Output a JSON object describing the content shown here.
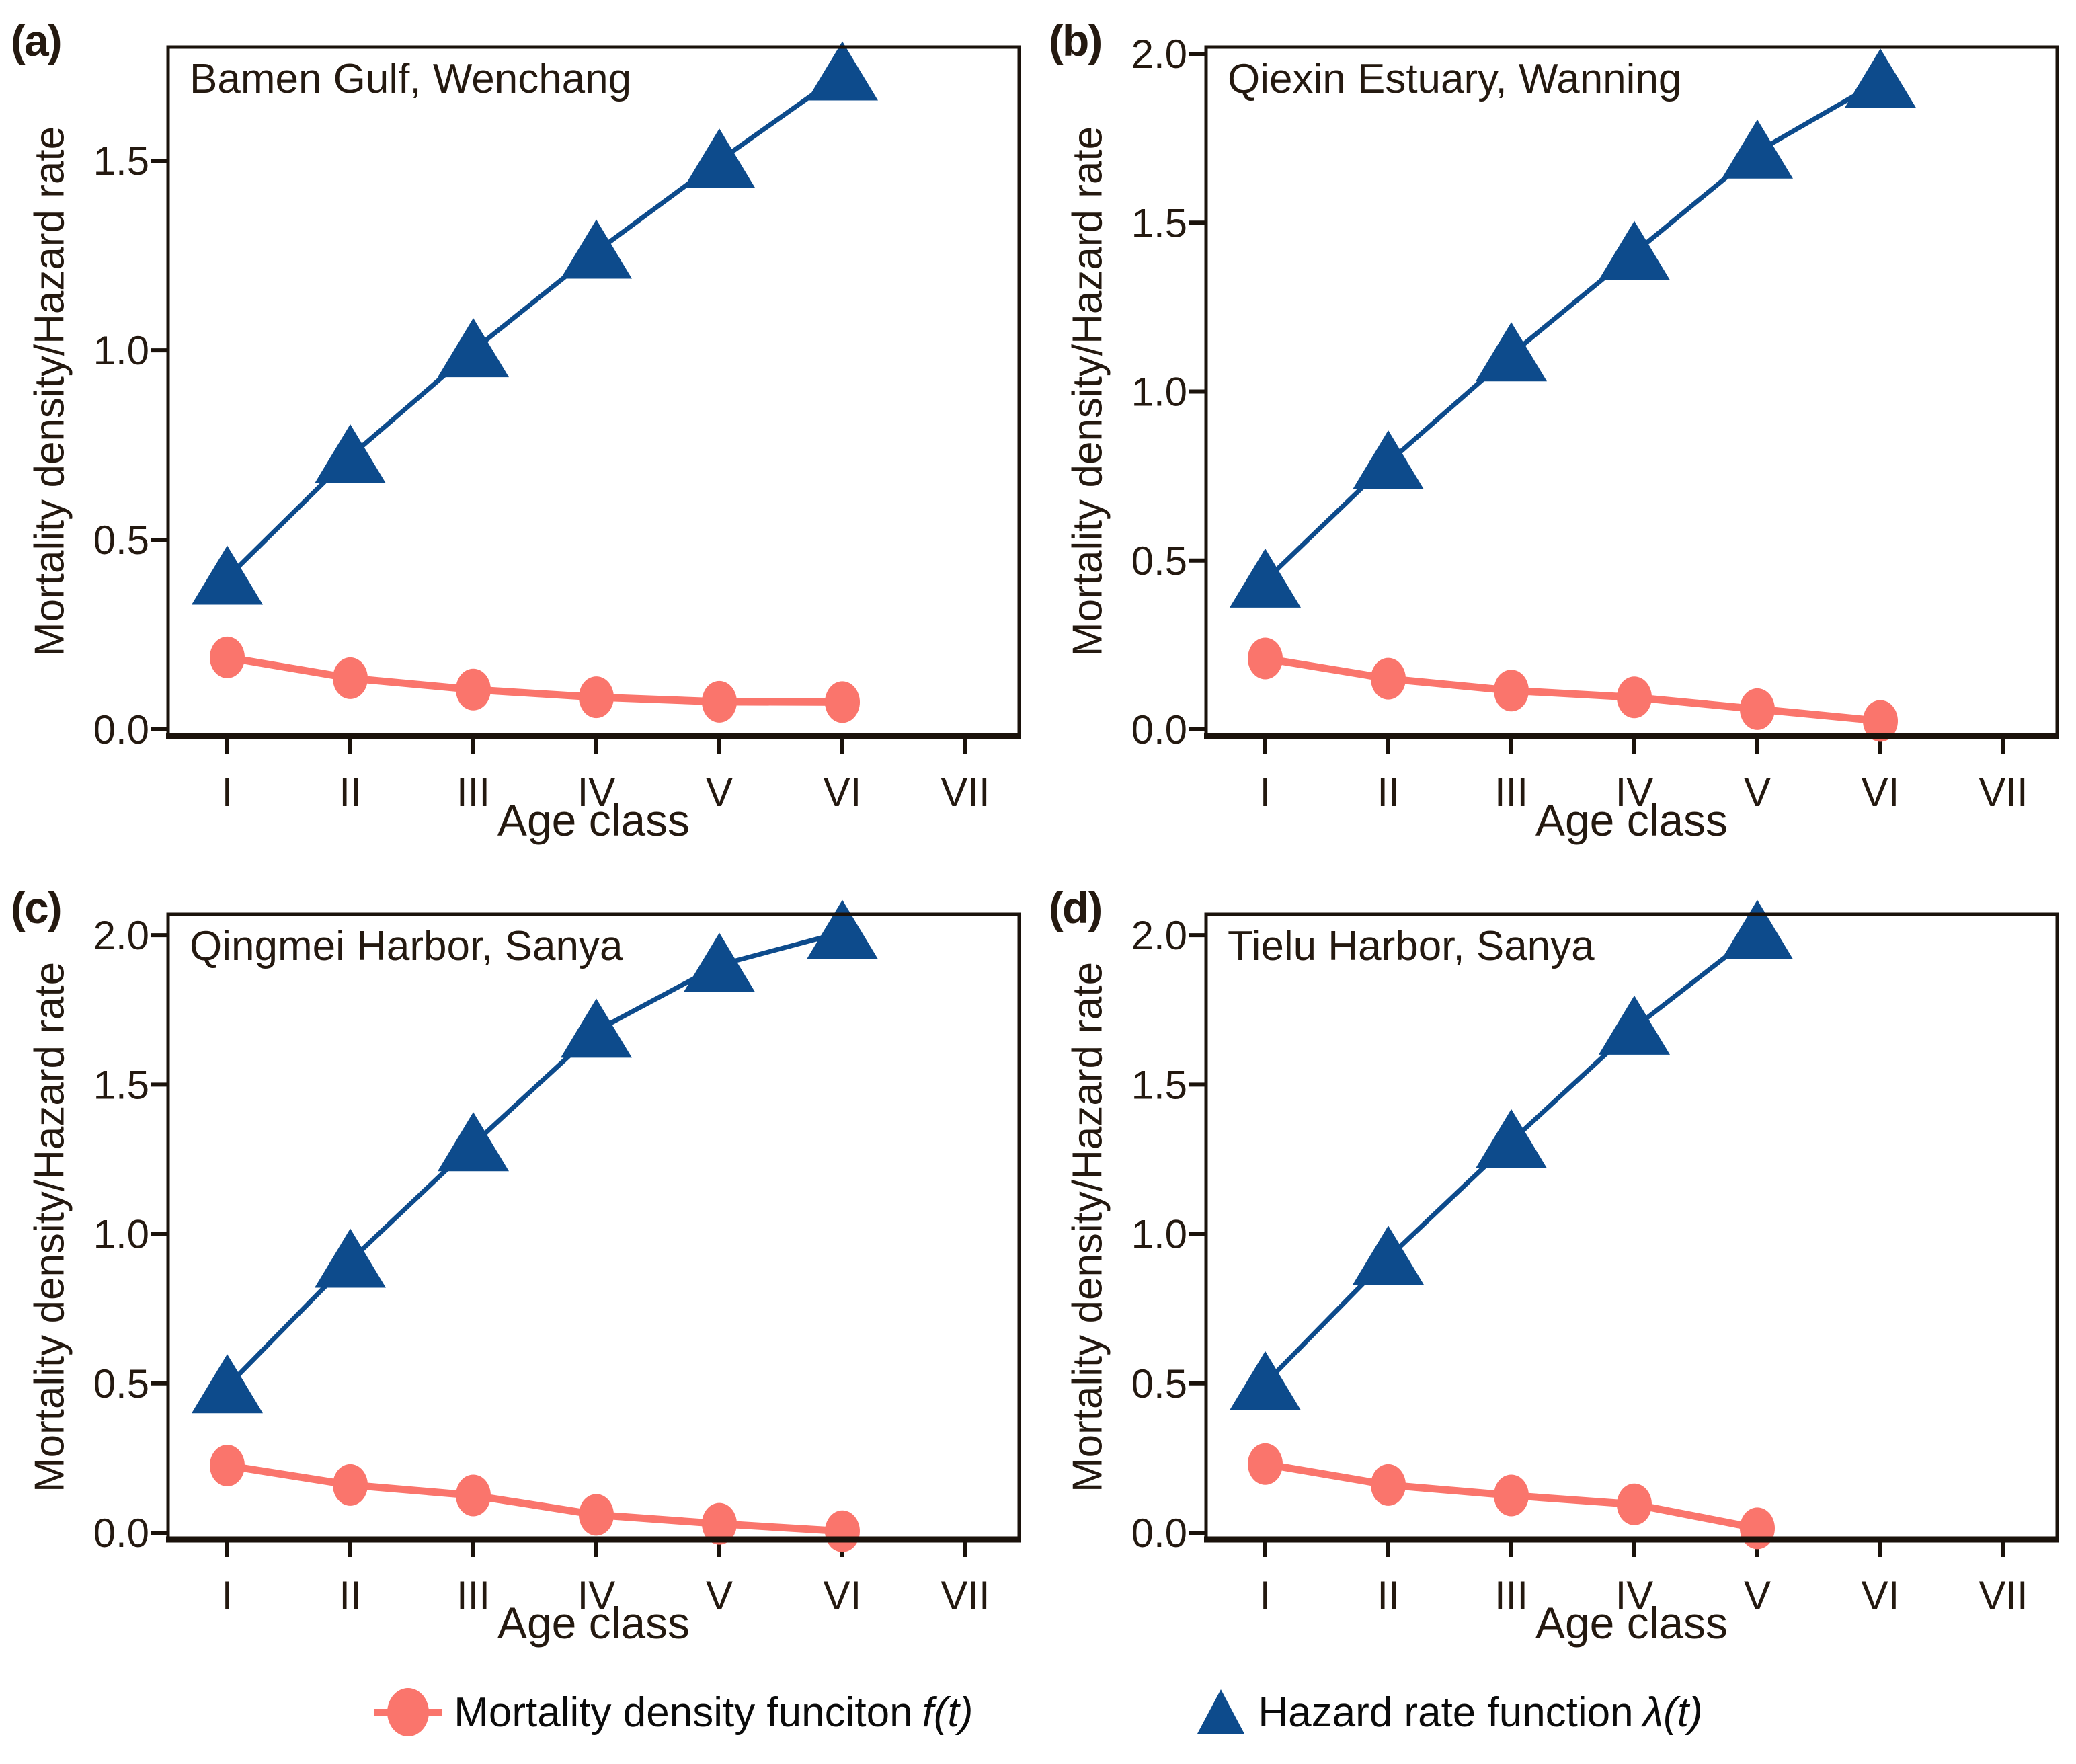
{
  "colors": {
    "mortality": "#fa756c",
    "hazard": "#0d4b8c",
    "panel_text": "#241910",
    "axis": "#1a120b",
    "legend_text": "#0b0b0b"
  },
  "legend": {
    "items": [
      {
        "icon": "circle-icon",
        "label": "Mortality density funciton",
        "math": "f(t)",
        "color": "#fa756c"
      },
      {
        "icon": "triangle-icon",
        "label": "Hazard rate function",
        "math": "λ(t)",
        "color": "#0d4b8c"
      }
    ]
  },
  "chart_data": [
    {
      "type": "line",
      "panel_label": "(a)",
      "title": "Bamen Gulf, Wenchang",
      "xlabel": "Age class",
      "ylabel": "Mortality density/Hazard rate",
      "categories": [
        "I",
        "II",
        "III",
        "IV",
        "V",
        "VI",
        "VII"
      ],
      "yticks": [
        0.0,
        0.5,
        1.0,
        1.5
      ],
      "ylim": [
        0,
        1.8
      ],
      "grid": false,
      "legend_position": "bottom-shared",
      "series": [
        {
          "name": "Mortality density funciton f(t)",
          "marker": "circle",
          "color": "#fa756c",
          "values": [
            0.19,
            0.135,
            0.105,
            0.085,
            0.073,
            0.072
          ]
        },
        {
          "name": "Hazard rate function λ(t)",
          "marker": "triangle",
          "color": "#0d4b8c",
          "values": [
            0.4,
            0.72,
            1.0,
            1.26,
            1.5,
            1.73
          ]
        }
      ]
    },
    {
      "type": "line",
      "panel_label": "(b)",
      "title": "Qiexin Estuary, Wanning",
      "xlabel": "Age class",
      "ylabel": "Mortality density/Hazard rate",
      "categories": [
        "I",
        "II",
        "III",
        "IV",
        "V",
        "VI",
        "VII"
      ],
      "yticks": [
        0.0,
        0.5,
        1.0,
        1.5,
        2.0
      ],
      "ylim": [
        0,
        2.02
      ],
      "grid": false,
      "legend_position": "bottom-shared",
      "series": [
        {
          "name": "Mortality density funciton f(t)",
          "marker": "circle",
          "color": "#fa756c",
          "values": [
            0.21,
            0.15,
            0.115,
            0.095,
            0.06,
            0.025
          ]
        },
        {
          "name": "Hazard rate function λ(t)",
          "marker": "triangle",
          "color": "#0d4b8c",
          "values": [
            0.44,
            0.79,
            1.11,
            1.41,
            1.71,
            1.92
          ]
        }
      ]
    },
    {
      "type": "line",
      "panel_label": "(c)",
      "title": "Qingmei Harbor, Sanya",
      "xlabel": "Age class",
      "ylabel": "Mortality density/Hazard rate",
      "categories": [
        "I",
        "II",
        "III",
        "IV",
        "V",
        "VI",
        "VII"
      ],
      "yticks": [
        0.0,
        0.5,
        1.0,
        1.5,
        2.0
      ],
      "ylim": [
        0,
        2.07
      ],
      "grid": false,
      "legend_position": "bottom-shared",
      "series": [
        {
          "name": "Mortality density funciton f(t)",
          "marker": "circle",
          "color": "#fa756c",
          "values": [
            0.225,
            0.16,
            0.125,
            0.06,
            0.03,
            0.005
          ]
        },
        {
          "name": "Hazard rate function λ(t)",
          "marker": "triangle",
          "color": "#0d4b8c",
          "values": [
            0.49,
            0.91,
            1.3,
            1.68,
            1.9,
            2.01
          ]
        }
      ]
    },
    {
      "type": "line",
      "panel_label": "(d)",
      "title": "Tielu Harbor, Sanya",
      "xlabel": "Age class",
      "ylabel": "Mortality density/Hazard rate",
      "categories": [
        "I",
        "II",
        "III",
        "IV",
        "V",
        "VI",
        "VII"
      ],
      "yticks": [
        0.0,
        0.5,
        1.0,
        1.5,
        2.0
      ],
      "ylim": [
        0,
        2.07
      ],
      "grid": false,
      "legend_position": "bottom-shared",
      "series": [
        {
          "name": "Mortality density funciton f(t)",
          "marker": "circle",
          "color": "#fa756c",
          "values": [
            0.23,
            0.16,
            0.125,
            0.095,
            0.015
          ]
        },
        {
          "name": "Hazard rate function λ(t)",
          "marker": "triangle",
          "color": "#0d4b8c",
          "values": [
            0.5,
            0.92,
            1.31,
            1.69,
            2.01
          ]
        }
      ]
    }
  ]
}
